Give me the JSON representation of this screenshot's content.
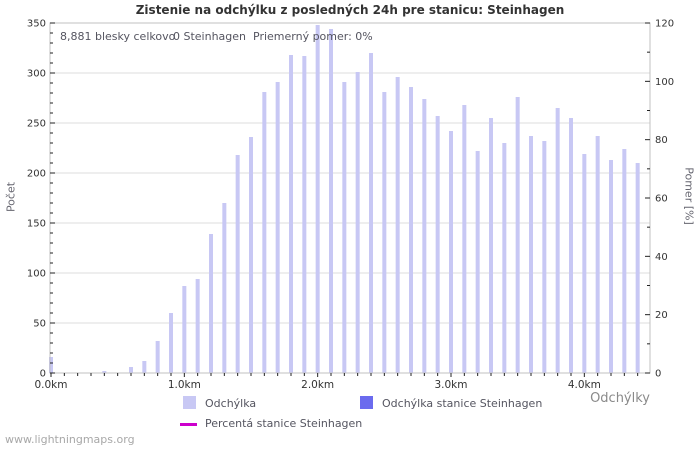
{
  "title": "Zistenie na odchýlku z posledných 24h pre stanicu: Steinhagen",
  "annotations": {
    "total": "8,881 blesky celkovo",
    "station": "0 Steinhagen",
    "ratio": "Priemerný pomer: 0%"
  },
  "axes": {
    "left_label": "Počet",
    "right_label": "Pomer [%]",
    "x_label": "Odchýlky"
  },
  "legend": {
    "deviation": "Odchýlka",
    "station_deviation": "Odchýlka stanice Steinhagen",
    "station_percent": "Percentá stanice Steinhagen"
  },
  "watermark": "www.lightningmaps.org",
  "colors": {
    "bar": "#c8c8f4",
    "station_bar": "#6b6bee",
    "percent_line": "#cc00cc",
    "grid": "#dcdcdc",
    "frame": "#c0c0c0",
    "tick": "#222222"
  },
  "chart_data": {
    "type": "bar",
    "title": "Zistenie na odchýlku z posledných 24h pre stanicu: Steinhagen",
    "xlabel": "Odchýlky",
    "ylabel_left": "Počet",
    "ylabel_right": "Pomer [%]",
    "x_unit": "km",
    "bin_km": 0.1,
    "ylim_left": [
      0,
      350
    ],
    "ylim_right": [
      0,
      120
    ],
    "left_tick_step": 50,
    "left_minor_step": 10,
    "right_tick_step": 20,
    "right_minor_step": 10,
    "grid": true,
    "legend_position": "bottom",
    "x_tick_labels": [
      "0.0km",
      "1.0km",
      "2.0km",
      "3.0km",
      "4.0km"
    ],
    "categories_km": [
      0.0,
      0.1,
      0.2,
      0.3,
      0.4,
      0.5,
      0.6,
      0.7,
      0.8,
      0.9,
      1.0,
      1.1,
      1.2,
      1.3,
      1.4,
      1.5,
      1.6,
      1.7,
      1.8,
      1.9,
      2.0,
      2.1,
      2.2,
      2.3,
      2.4,
      2.5,
      2.6,
      2.7,
      2.8,
      2.9,
      3.0,
      3.1,
      3.2,
      3.3,
      3.4,
      3.5,
      3.6,
      3.7,
      3.8,
      3.9,
      4.0,
      4.1,
      4.2,
      4.3,
      4.4
    ],
    "series": [
      {
        "name": "Odchýlka",
        "type": "bar",
        "values": [
          16,
          0,
          0,
          0,
          2,
          0,
          6,
          12,
          32,
          60,
          87,
          94,
          139,
          170,
          218,
          236,
          281,
          291,
          318,
          317,
          348,
          344,
          291,
          301,
          320,
          281,
          296,
          286,
          274,
          257,
          242,
          268,
          222,
          255,
          230,
          276,
          237,
          232,
          265,
          255,
          219,
          237,
          213,
          224,
          210
        ]
      },
      {
        "name": "Odchýlka stanice Steinhagen",
        "type": "bar",
        "values": [
          0,
          0,
          0,
          0,
          0,
          0,
          0,
          0,
          0,
          0,
          0,
          0,
          0,
          0,
          0,
          0,
          0,
          0,
          0,
          0,
          0,
          0,
          0,
          0,
          0,
          0,
          0,
          0,
          0,
          0,
          0,
          0,
          0,
          0,
          0,
          0,
          0,
          0,
          0,
          0,
          0,
          0,
          0,
          0,
          0
        ]
      },
      {
        "name": "Percentá stanice Steinhagen",
        "type": "line",
        "axis": "right",
        "values": [
          0,
          0,
          0,
          0,
          0,
          0,
          0,
          0,
          0,
          0,
          0,
          0,
          0,
          0,
          0,
          0,
          0,
          0,
          0,
          0,
          0,
          0,
          0,
          0,
          0,
          0,
          0,
          0,
          0,
          0,
          0,
          0,
          0,
          0,
          0,
          0,
          0,
          0,
          0,
          0,
          0,
          0,
          0,
          0,
          0
        ]
      }
    ]
  }
}
